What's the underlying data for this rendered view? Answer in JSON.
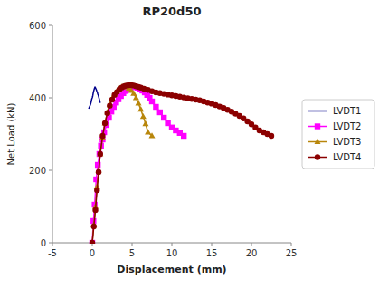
{
  "chart_data": {
    "type": "line",
    "title": "RP20d50",
    "x_label": "Displacement (mm)",
    "y_label": "Net Load (kN)",
    "xlim": [
      -5,
      25
    ],
    "ylim": [
      0,
      600
    ],
    "xticks": [
      -5,
      0,
      5,
      10,
      15,
      20,
      25
    ],
    "yticks": [
      0,
      200,
      400,
      600
    ],
    "grid": false,
    "legend": "right",
    "series": [
      {
        "name": "LVDT1",
        "color": "#00008B",
        "marker": "none",
        "x": [
          -0.45,
          -0.35,
          -0.25,
          -0.18,
          -0.12,
          -0.08,
          -0.04,
          0.0,
          0.04,
          0.08,
          0.12,
          0.18,
          0.22,
          0.28,
          0.34,
          0.4,
          0.46,
          0.52,
          0.58,
          0.64,
          0.7,
          0.76,
          0.82,
          0.88,
          0.94,
          1.0
        ],
        "values": [
          370,
          375,
          380,
          385,
          390,
          395,
          398,
          400,
          403,
          407,
          413,
          418,
          422,
          426,
          430,
          428,
          425,
          422,
          418,
          415,
          410,
          407,
          402,
          397,
          392,
          386
        ]
      },
      {
        "name": "LVDT2",
        "color": "#FF00FF",
        "marker": "square",
        "x": [
          0.0,
          0.15,
          0.3,
          0.5,
          0.7,
          0.9,
          1.1,
          1.3,
          1.5,
          1.8,
          2.1,
          2.4,
          2.7,
          3.0,
          3.3,
          3.6,
          3.9,
          4.2,
          4.5,
          4.8,
          5.1,
          5.4,
          5.7,
          6.0,
          6.3,
          6.6,
          6.9,
          7.2,
          7.5,
          8.0,
          8.5,
          9.0,
          9.5,
          10.0,
          10.5,
          11.0,
          11.5
        ],
        "values": [
          0,
          60,
          105,
          175,
          215,
          245,
          268,
          285,
          305,
          325,
          345,
          362,
          375,
          387,
          396,
          405,
          413,
          419,
          424,
          428,
          430,
          430,
          428,
          424,
          420,
          415,
          408,
          400,
          390,
          375,
          360,
          345,
          330,
          318,
          310,
          303,
          295
        ]
      },
      {
        "name": "LVDT3",
        "color": "#B8860B",
        "marker": "triangle",
        "x": [
          0.0,
          0.2,
          0.4,
          0.6,
          0.8,
          1.0,
          1.3,
          1.6,
          1.9,
          2.2,
          2.5,
          2.8,
          3.1,
          3.4,
          3.7,
          4.0,
          4.3,
          4.6,
          4.9,
          5.2,
          5.5,
          5.8,
          6.1,
          6.4,
          6.7,
          7.0,
          7.5
        ],
        "values": [
          0,
          50,
          100,
          155,
          200,
          245,
          290,
          330,
          360,
          382,
          398,
          410,
          418,
          425,
          430,
          432,
          430,
          426,
          420,
          412,
          400,
          385,
          368,
          348,
          328,
          305,
          295
        ]
      },
      {
        "name": "LVDT4",
        "color": "#8B0000",
        "marker": "circle",
        "x": [
          0.0,
          0.2,
          0.4,
          0.6,
          0.8,
          1.0,
          1.3,
          1.6,
          1.9,
          2.2,
          2.5,
          2.8,
          3.1,
          3.4,
          3.7,
          4.0,
          4.3,
          4.6,
          4.9,
          5.2,
          5.5,
          5.8,
          6.1,
          6.5,
          7.0,
          7.5,
          8.0,
          8.5,
          9.0,
          9.5,
          10.0,
          10.5,
          11.0,
          11.5,
          12.0,
          12.5,
          13.0,
          13.5,
          14.0,
          14.5,
          15.0,
          15.5,
          16.0,
          16.5,
          17.0,
          17.5,
          18.0,
          18.5,
          19.0,
          19.5,
          20.0,
          20.5,
          21.0,
          21.5,
          22.0,
          22.5
        ],
        "values": [
          0,
          45,
          90,
          145,
          195,
          245,
          295,
          330,
          358,
          378,
          395,
          408,
          416,
          423,
          428,
          432,
          434,
          435,
          435,
          434,
          432,
          430,
          428,
          425,
          422,
          418,
          415,
          413,
          411,
          409,
          407,
          405,
          403,
          401,
          399,
          397,
          395,
          393,
          390,
          387,
          384,
          380,
          376,
          372,
          367,
          362,
          356,
          350,
          343,
          335,
          327,
          318,
          310,
          305,
          300,
          295
        ]
      }
    ]
  }
}
